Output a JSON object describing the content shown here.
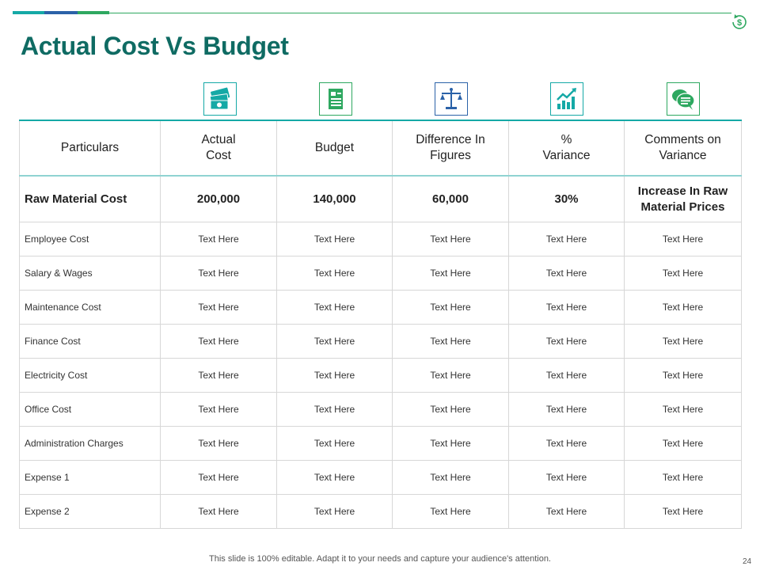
{
  "colors": {
    "accent_teal": "#15a9a6",
    "accent_blue": "#2b62a8",
    "accent_green": "#2ea860",
    "title": "#0f6b63"
  },
  "logo": {
    "icon": "dollar-cycle-icon",
    "symbol": "$"
  },
  "title": "Actual Cost Vs Budget",
  "header_icons": [
    {
      "name": "money-stack-icon",
      "color": "#15a9a6"
    },
    {
      "name": "invoice-icon",
      "color": "#2ea860"
    },
    {
      "name": "balance-scale-icon",
      "color": "#2b62a8"
    },
    {
      "name": "growth-chart-icon",
      "color": "#15a9a6"
    },
    {
      "name": "chat-bubbles-icon",
      "color": "#2ea860"
    }
  ],
  "table": {
    "headers": [
      "Particulars",
      "Actual\nCost",
      "Budget",
      "Difference In\nFigures",
      "%\nVariance",
      "Comments on\nVariance"
    ],
    "highlight_row": [
      "Raw Material Cost",
      "200,000",
      "140,000",
      "60,000",
      "30%",
      "Increase In Raw\nMaterial Prices"
    ],
    "rows": [
      [
        "Employee Cost",
        "Text Here",
        "Text Here",
        "Text Here",
        "Text Here",
        "Text Here"
      ],
      [
        "Salary & Wages",
        "Text Here",
        "Text Here",
        "Text Here",
        "Text Here",
        "Text Here"
      ],
      [
        "Maintenance Cost",
        "Text Here",
        "Text Here",
        "Text Here",
        "Text Here",
        "Text Here"
      ],
      [
        "Finance Cost",
        "Text Here",
        "Text Here",
        "Text Here",
        "Text Here",
        "Text Here"
      ],
      [
        "Electricity Cost",
        "Text Here",
        "Text Here",
        "Text Here",
        "Text Here",
        "Text Here"
      ],
      [
        "Office Cost",
        "Text Here",
        "Text Here",
        "Text Here",
        "Text Here",
        "Text Here"
      ],
      [
        "Administration Charges",
        "Text Here",
        "Text Here",
        "Text Here",
        "Text Here",
        "Text Here"
      ],
      [
        "Expense 1",
        "Text Here",
        "Text Here",
        "Text Here",
        "Text Here",
        "Text Here"
      ],
      [
        "Expense 2",
        "Text Here",
        "Text Here",
        "Text Here",
        "Text Here",
        "Text Here"
      ]
    ]
  },
  "footer": "This slide is 100% editable. Adapt it to your needs and capture your audience's attention.",
  "page_number": "24"
}
